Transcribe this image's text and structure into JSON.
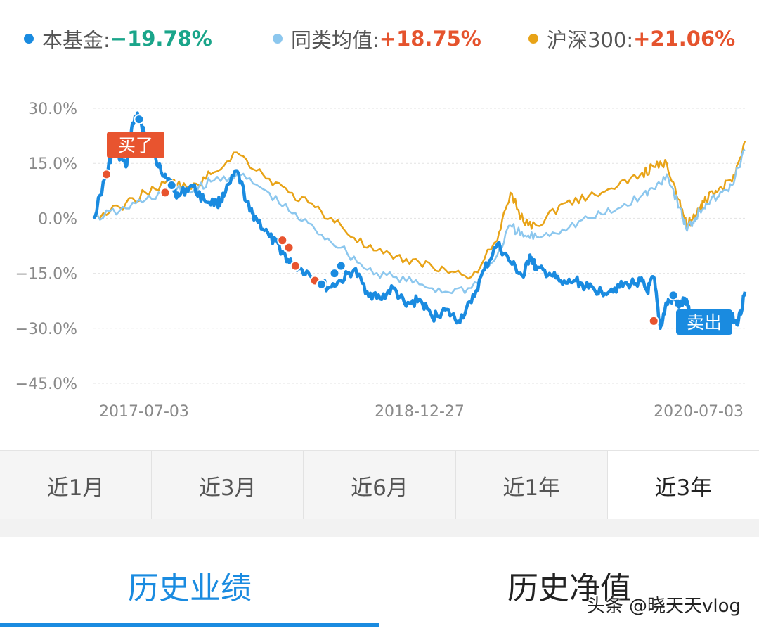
{
  "legend": [
    {
      "label": "本基金:",
      "value": "−19.78%",
      "dot_color": "#1a8be0",
      "value_color": "#1aa58a"
    },
    {
      "label": "同类均值:",
      "value": "+18.75%",
      "dot_color": "#8cc7ee",
      "value_color": "#e5532d"
    },
    {
      "label": "沪深300:",
      "value": "+21.06%",
      "dot_color": "#e8a317",
      "value_color": "#e5532d"
    }
  ],
  "range_tabs": [
    "近1月",
    "近3月",
    "近6月",
    "近1年",
    "近3年"
  ],
  "active_range": "近3年",
  "bottom_tabs": [
    "历史业绩",
    "历史净值"
  ],
  "active_bottom_tab": "历史业绩",
  "watermark": "头条 @晓天天vlog",
  "chart_data": {
    "type": "line",
    "x_tick_labels": [
      "2017-07-03",
      "2018-12-27",
      "2020-07-03"
    ],
    "y_ticks": [
      "30.0%",
      "15.0%",
      "0.0%",
      "−15.0%",
      "−30.0%",
      "−45.0%"
    ],
    "ylim": [
      -45,
      30
    ],
    "y_unit": "%",
    "grid": true,
    "annotations": [
      {
        "text": "买了",
        "color": "#e8542f"
      },
      {
        "text": "卖出",
        "color": "#1a8be0"
      }
    ],
    "series": [
      {
        "name": "本基金",
        "color": "#1a8be0",
        "x": [
          0,
          0.02,
          0.03,
          0.05,
          0.06,
          0.07,
          0.08,
          0.1,
          0.11,
          0.12,
          0.13,
          0.15,
          0.17,
          0.19,
          0.2,
          0.22,
          0.24,
          0.25,
          0.27,
          0.29,
          0.3,
          0.32,
          0.34,
          0.36,
          0.38,
          0.4,
          0.42,
          0.44,
          0.46,
          0.48,
          0.5,
          0.52,
          0.54,
          0.56,
          0.58,
          0.6,
          0.62,
          0.64,
          0.66,
          0.67,
          0.68,
          0.7,
          0.72,
          0.74,
          0.76,
          0.78,
          0.8,
          0.82,
          0.84,
          0.85,
          0.86,
          0.87,
          0.88,
          0.89,
          0.9,
          0.91,
          0.92,
          0.93,
          0.94,
          0.95,
          0.96,
          0.97,
          0.98,
          0.99,
          1.0
        ],
        "y": [
          0,
          12,
          19,
          14,
          26,
          28,
          22,
          14,
          12,
          9,
          6,
          9,
          5,
          4,
          6,
          13,
          2,
          0,
          -5,
          -9,
          -12,
          -14,
          -16,
          -19,
          -17,
          -14,
          -20,
          -22,
          -19,
          -24,
          -22,
          -27,
          -25,
          -28,
          -23,
          -14,
          -7,
          -12,
          -16,
          -10,
          -14,
          -15,
          -18,
          -17,
          -19,
          -20,
          -19,
          -18,
          -17,
          -20,
          -16,
          -30,
          -23,
          -22,
          -24,
          -22,
          -29,
          -28,
          -30,
          -29,
          -28,
          -29,
          -27,
          -28,
          -20
        ]
      },
      {
        "name": "同类均值",
        "color": "#8cc7ee",
        "x": [
          0,
          0.04,
          0.08,
          0.12,
          0.15,
          0.18,
          0.22,
          0.26,
          0.3,
          0.34,
          0.38,
          0.42,
          0.46,
          0.5,
          0.54,
          0.58,
          0.62,
          0.64,
          0.66,
          0.68,
          0.72,
          0.76,
          0.8,
          0.84,
          0.86,
          0.88,
          0.9,
          0.91,
          0.92,
          0.93,
          0.94,
          0.96,
          0.98,
          1.0
        ],
        "y": [
          0,
          2,
          5,
          8,
          7,
          10,
          12,
          8,
          2,
          -3,
          -8,
          -14,
          -16,
          -18,
          -20,
          -19,
          -10,
          -2,
          -5,
          -5,
          -3,
          0,
          2,
          6,
          8,
          12,
          3,
          -3,
          -1,
          2,
          4,
          6,
          9,
          18.75
        ]
      },
      {
        "name": "沪深300",
        "color": "#e8a317",
        "x": [
          0,
          0.04,
          0.08,
          0.12,
          0.15,
          0.18,
          0.22,
          0.26,
          0.3,
          0.34,
          0.38,
          0.42,
          0.46,
          0.5,
          0.54,
          0.58,
          0.62,
          0.64,
          0.66,
          0.68,
          0.72,
          0.76,
          0.8,
          0.84,
          0.86,
          0.88,
          0.9,
          0.91,
          0.92,
          0.93,
          0.94,
          0.96,
          0.98,
          1.0
        ],
        "y": [
          0,
          3,
          7,
          10,
          8,
          12,
          18,
          12,
          7,
          3,
          -2,
          -8,
          -11,
          -12,
          -14,
          -16,
          -6,
          7,
          -1,
          -2,
          4,
          6,
          8,
          12,
          14,
          15,
          5,
          -2,
          0,
          3,
          5,
          8,
          10,
          21.06
        ]
      }
    ],
    "markers": [
      {
        "series": "本基金",
        "x": 0.02,
        "y": 12,
        "color": "#e8542f"
      },
      {
        "series": "本基金",
        "x": 0.07,
        "y": 27,
        "color": "#1a8be0"
      },
      {
        "series": "本基金",
        "x": 0.11,
        "y": 7,
        "color": "#e8542f"
      },
      {
        "series": "本基金",
        "x": 0.12,
        "y": 9,
        "color": "#1a8be0"
      },
      {
        "series": "本基金",
        "x": 0.29,
        "y": -6,
        "color": "#e8542f"
      },
      {
        "series": "本基金",
        "x": 0.3,
        "y": -8,
        "color": "#e8542f"
      },
      {
        "series": "本基金",
        "x": 0.31,
        "y": -13,
        "color": "#e8542f"
      },
      {
        "series": "本基金",
        "x": 0.34,
        "y": -17,
        "color": "#e8542f"
      },
      {
        "series": "本基金",
        "x": 0.35,
        "y": -18,
        "color": "#1a8be0"
      },
      {
        "series": "本基金",
        "x": 0.37,
        "y": -15,
        "color": "#1a8be0"
      },
      {
        "series": "本基金",
        "x": 0.38,
        "y": -13,
        "color": "#1a8be0"
      },
      {
        "series": "本基金",
        "x": 0.86,
        "y": -28,
        "color": "#e8542f"
      },
      {
        "series": "本基金",
        "x": 0.89,
        "y": -21,
        "color": "#1a8be0"
      }
    ]
  }
}
